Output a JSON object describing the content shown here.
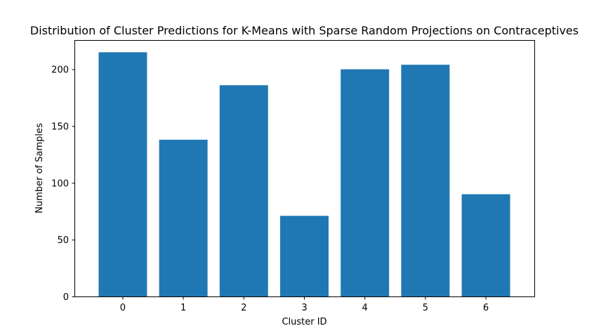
{
  "chart_data": {
    "type": "bar",
    "title": "Distribution of Cluster Predictions for K-Means with Sparse Random Projections on Contraceptives",
    "xlabel": "Cluster ID",
    "ylabel": "Number of Samples",
    "categories": [
      "0",
      "1",
      "2",
      "3",
      "4",
      "5",
      "6"
    ],
    "values": [
      215,
      138,
      186,
      71,
      200,
      204,
      90
    ],
    "ylim": [
      0,
      225.75
    ],
    "xlim": [
      -0.8,
      6.8
    ],
    "yticks": [
      0,
      50,
      100,
      150,
      200
    ],
    "grid": false,
    "legend": "none",
    "bar_color": "#1f77b4",
    "axis_color": "#000000"
  }
}
